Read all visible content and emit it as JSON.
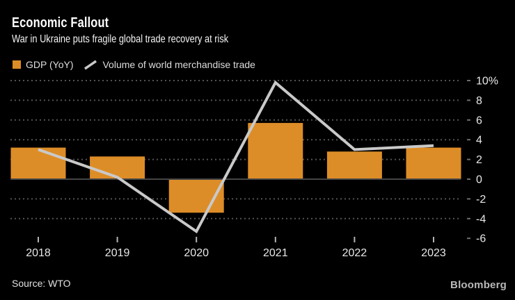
{
  "header": {
    "title": "Economic Fallout",
    "subtitle": "War in Ukraine puts fragile global trade recovery at risk"
  },
  "legend": {
    "gdp_label": "GDP (YoY)",
    "trade_label": "Volume of world merchandise trade"
  },
  "chart_data": {
    "type": "bar",
    "categories": [
      "2018",
      "2019",
      "2020",
      "2021",
      "2022",
      "2023"
    ],
    "series": [
      {
        "name": "GDP (YoY)",
        "type": "bar",
        "values": [
          3.2,
          2.3,
          -3.4,
          5.7,
          2.8,
          3.2
        ]
      },
      {
        "name": "Volume of world merchandise trade",
        "type": "line",
        "values": [
          3.0,
          0.2,
          -5.3,
          9.8,
          3.0,
          3.4
        ]
      }
    ],
    "title": "Economic Fallout",
    "xlabel": "",
    "ylabel": "%",
    "ylim": [
      -6,
      10
    ],
    "yticks": [
      {
        "value": 10,
        "label": "10%"
      },
      {
        "value": 8,
        "label": "8"
      },
      {
        "value": 6,
        "label": "6"
      },
      {
        "value": 4,
        "label": "4"
      },
      {
        "value": 2,
        "label": "2"
      },
      {
        "value": 0,
        "label": "0"
      },
      {
        "value": -2,
        "label": "-2"
      },
      {
        "value": -4,
        "label": "-4"
      },
      {
        "value": -6,
        "label": "-6"
      }
    ],
    "gridline_values": [
      10,
      8,
      6,
      4,
      2,
      -2,
      -4
    ],
    "grid": "dotted",
    "legend_position": "top",
    "colors": {
      "bar": "#dd8d27",
      "line": "#c9c9c9",
      "grid": "#545454",
      "zero_axis": "#454545",
      "axis_text": "#e8e8e8",
      "y_tick": "#6e6e6e",
      "x_tick": "#b5b5b5",
      "background": "#000000"
    }
  },
  "footer": {
    "source": "Source: WTO",
    "brand": "Bloomberg"
  }
}
